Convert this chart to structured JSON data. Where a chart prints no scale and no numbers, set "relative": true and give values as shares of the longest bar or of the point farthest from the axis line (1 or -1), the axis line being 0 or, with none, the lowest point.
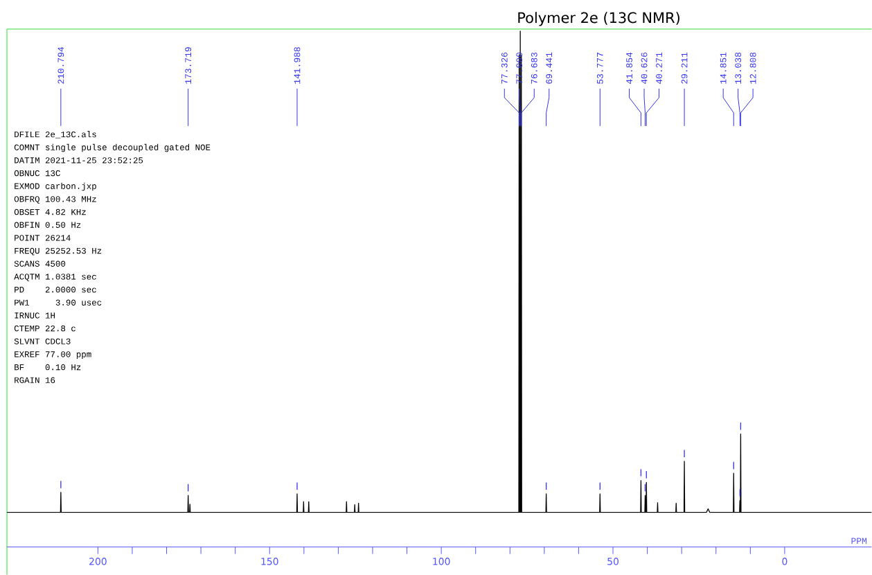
{
  "chart_data": {
    "type": "line",
    "title": "Polymer 2e (13C NMR)",
    "xlabel": "PPM",
    "relative": true,
    "xlim": [
      226.5,
      -25.3
    ],
    "xticks": [
      200,
      150,
      100,
      50,
      0
    ],
    "series": [
      {
        "color": "#000000",
        "x": [
          226.5,
          210.894,
          210.794,
          210.694,
          173.819,
          173.719,
          173.619,
          173.3,
          173.2,
          173.1,
          142.088,
          141.988,
          141.888,
          140.2,
          140.1,
          140.0,
          138.7,
          138.6,
          138.5,
          127.7,
          127.6,
          127.5,
          125.3,
          125.2,
          125.1,
          124.2,
          124.1,
          124.0,
          77.426,
          77.326,
          77.226,
          77.1,
          77.0,
          76.9,
          76.783,
          76.683,
          76.583,
          69.541,
          69.441,
          69.341,
          53.877,
          53.777,
          53.677,
          41.954,
          41.854,
          41.754,
          40.726,
          40.626,
          40.526,
          40.371,
          40.271,
          40.171,
          37.1,
          37.0,
          36.9,
          31.7,
          31.6,
          31.5,
          29.311,
          29.211,
          29.111,
          22.8,
          22.3,
          21.8,
          14.951,
          14.851,
          14.751,
          13.138,
          13.038,
          12.938,
          12.908,
          12.808,
          12.708,
          -25.3
        ],
        "values": [
          0.067,
          0.067,
          0.106,
          0.067,
          0.067,
          0.1,
          0.067,
          0.067,
          0.083,
          0.067,
          0.067,
          0.103,
          0.067,
          0.067,
          0.088,
          0.067,
          0.067,
          0.088,
          0.067,
          0.067,
          0.088,
          0.067,
          0.067,
          0.082,
          0.067,
          0.067,
          0.085,
          0.067,
          0.067,
          0.953,
          0.067,
          0.067,
          1.0,
          0.067,
          0.067,
          0.953,
          0.067,
          0.067,
          0.103,
          0.067,
          0.067,
          0.103,
          0.067,
          0.067,
          0.129,
          0.067,
          0.067,
          0.1,
          0.067,
          0.067,
          0.125,
          0.067,
          0.067,
          0.086,
          0.067,
          0.067,
          0.085,
          0.067,
          0.067,
          0.166,
          0.067,
          0.067,
          0.074,
          0.067,
          0.067,
          0.143,
          0.067,
          0.067,
          0.09,
          0.067,
          0.067,
          0.219,
          0.067,
          0.067
        ]
      },
      {
        "color": "#3333ee",
        "x": [
          210.794,
          210.794,
          null,
          173.719,
          173.719,
          null,
          141.988,
          141.988,
          null,
          69.441,
          69.441,
          null,
          53.777,
          53.777,
          null,
          41.854,
          41.854,
          null,
          40.626,
          40.626,
          null,
          40.271,
          40.271,
          null,
          29.211,
          29.211,
          null,
          14.851,
          14.851,
          null,
          13.038,
          13.038,
          null,
          12.808,
          12.808
        ],
        "values": [
          0.114,
          0.128,
          null,
          0.108,
          0.122,
          null,
          0.111,
          0.125,
          null,
          0.111,
          0.125,
          null,
          0.111,
          0.125,
          null,
          0.137,
          0.151,
          null,
          0.108,
          0.122,
          null,
          0.133,
          0.147,
          null,
          0.174,
          0.188,
          null,
          0.151,
          0.165,
          null,
          0.098,
          0.112,
          null,
          0.227,
          0.241
        ]
      }
    ],
    "annotations": [
      {
        "text": "210.794",
        "x": 210.794
      },
      {
        "text": "173.719",
        "x": 173.719
      },
      {
        "text": "141.988",
        "x": 141.988
      },
      {
        "text": "77.326",
        "x": 77.326
      },
      {
        "text": "77.000",
        "x": 77.0
      },
      {
        "text": "76.683",
        "x": 76.683
      },
      {
        "text": "69.441",
        "x": 69.441
      },
      {
        "text": "53.777",
        "x": 53.777
      },
      {
        "text": "41.854",
        "x": 41.854
      },
      {
        "text": "40.626",
        "x": 40.626
      },
      {
        "text": "40.271",
        "x": 40.271
      },
      {
        "text": "29.211",
        "x": 29.211
      },
      {
        "text": "14.851",
        "x": 14.851
      },
      {
        "text": "13.038",
        "x": 13.038
      },
      {
        "text": "12.808",
        "x": 12.808
      },
      "DFILE 2e_13C.als",
      "COMNT single pulse decoupled gated NOE",
      "DATIM 2021-11-25 23:52:25",
      "OBNUC 13C",
      "EXMOD carbon.jxp",
      "OBFRQ 100.43 MHz",
      "OBSET 4.82 KHz",
      "OBFIN 0.50 Hz",
      "POINT 26214",
      "FREQU 25252.53 Hz",
      "SCANS 4500",
      "ACQTM 1.0381 sec",
      "PD    2.0000 sec",
      "PW1     3.90 usec",
      "IRNUC 1H",
      "CTEMP 22.8 c",
      "SLVNT CDCL3",
      "EXREF 77.00 ppm",
      "BF    0.10 Hz",
      "RGAIN 16"
    ]
  }
}
